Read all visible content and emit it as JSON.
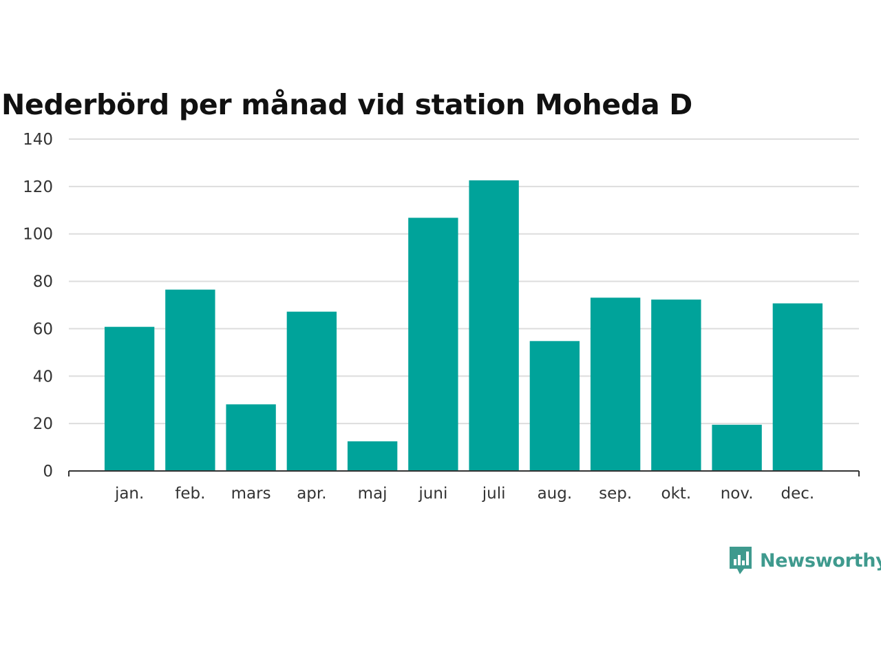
{
  "chart_data": {
    "type": "bar",
    "title": "Nederbörd per månad vid station Moheda D",
    "xlabel": "",
    "ylabel": "",
    "categories": [
      "jan.",
      "feb.",
      "mars",
      "apr.",
      "maj",
      "juni",
      "juli",
      "aug.",
      "sep.",
      "okt.",
      "nov.",
      "dec."
    ],
    "values": [
      60.8,
      76.5,
      28.1,
      67.2,
      12.5,
      106.8,
      122.6,
      54.8,
      73.1,
      72.3,
      19.5,
      70.7
    ],
    "ylim": [
      0,
      140
    ],
    "yticks": [
      "0",
      "20",
      "40",
      "60",
      "80",
      "100",
      "120",
      "140"
    ],
    "grid": true,
    "legend": "none",
    "bar_color": "#00a39a",
    "grid_color": "#dddddd",
    "axis_color": "#333333"
  },
  "brand": {
    "name": "Newsworthy",
    "icon": "newsworthy-logo-icon",
    "color": "#3f9a8e"
  }
}
